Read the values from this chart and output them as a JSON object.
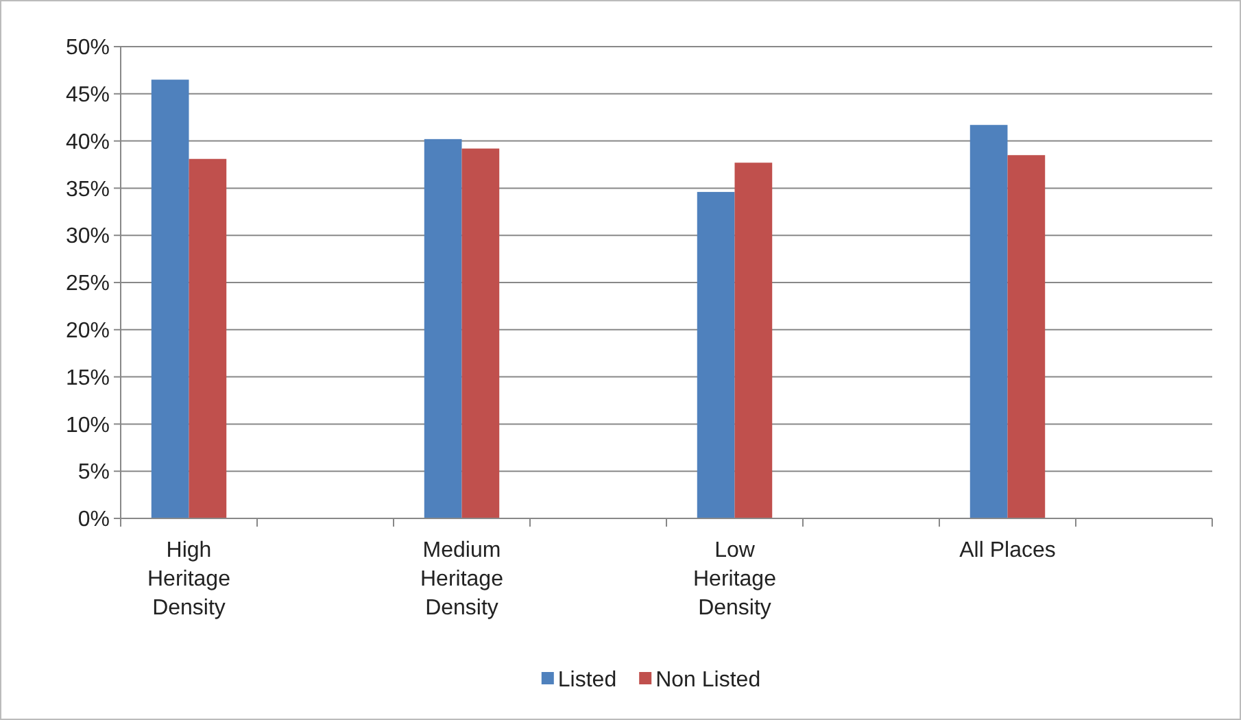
{
  "chart_data": {
    "type": "bar",
    "categories": [
      "High Heritage Density",
      null,
      "Medium Heritage Density",
      null,
      "Low Heritage Density",
      null,
      "All Places",
      null
    ],
    "series": [
      {
        "name": "Listed",
        "color": "#4f81bd",
        "values": [
          46.5,
          null,
          40.2,
          null,
          34.6,
          null,
          41.7,
          null
        ]
      },
      {
        "name": "Non Listed",
        "color": "#c0504d",
        "values": [
          38.1,
          null,
          39.2,
          null,
          37.7,
          null,
          38.5,
          null
        ]
      }
    ],
    "ylim": [
      0,
      50
    ],
    "yticks": [
      {
        "value": 0,
        "label": "0%"
      },
      {
        "value": 5,
        "label": "5%"
      },
      {
        "value": 10,
        "label": "10%"
      },
      {
        "value": 15,
        "label": "15%"
      },
      {
        "value": 20,
        "label": "20%"
      },
      {
        "value": 25,
        "label": "25%"
      },
      {
        "value": 30,
        "label": "30%"
      },
      {
        "value": 35,
        "label": "35%"
      },
      {
        "value": 40,
        "label": "40%"
      },
      {
        "value": 45,
        "label": "45%"
      },
      {
        "value": 50,
        "label": "50%"
      }
    ],
    "grid": "y",
    "legend": "bottom"
  }
}
